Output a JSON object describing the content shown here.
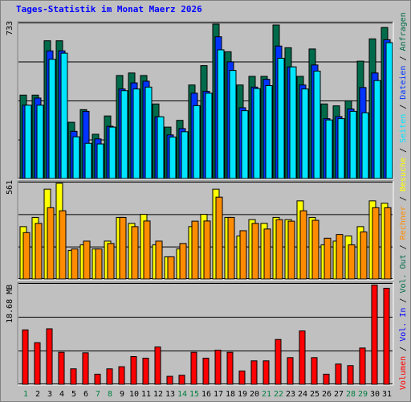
{
  "title": "Tages-Statistik im Monat Maerz 2026",
  "colors": {
    "background": "#c0c0c0",
    "hits": "#006b4a",
    "files": "#0033ff",
    "pages": "#00e5ff",
    "visits": "#ffff00",
    "sites": "#ff8c00",
    "volume": "#ff0000",
    "weekend_label": "#008040",
    "title": "#0000ff"
  },
  "legend": {
    "top_sep1": " / ",
    "top_sep2": " / ",
    "top_sep3": " / ",
    "mid_sep1": " / ",
    "mid_sep2": " / ",
    "bot_sep1": " / ",
    "bot_sep2": " / ",
    "bot_sep3": " / "
  },
  "chart_data": [
    {
      "type": "bar",
      "panel": "top",
      "max_label": "733",
      "ylim": [
        0,
        733
      ],
      "grid": true,
      "categories": [
        "1",
        "2",
        "3",
        "4",
        "5",
        "6",
        "7",
        "8",
        "9",
        "10",
        "11",
        "12",
        "13",
        "14",
        "15",
        "16",
        "17",
        "18",
        "19",
        "20",
        "21",
        "22",
        "23",
        "24",
        "25",
        "26",
        "27",
        "28",
        "29",
        "30",
        "31"
      ],
      "weekend_days": [
        "1",
        "7",
        "8",
        "14",
        "15",
        "21",
        "22",
        "28",
        "29"
      ],
      "series": [
        {
          "name": "Anfragen",
          "color": "#006b4a",
          "values": [
            396,
            396,
            654,
            654,
            267,
            327,
            210,
            297,
            489,
            501,
            489,
            354,
            244,
            276,
            444,
            536,
            733,
            602,
            444,
            485,
            485,
            729,
            621,
            485,
            615,
            354,
            345,
            369,
            557,
            663,
            717
          ]
        },
        {
          "name": "Dateien",
          "color": "#0033ff",
          "values": [
            348,
            382,
            606,
            606,
            224,
            319,
            188,
            248,
            425,
            454,
            462,
            293,
            207,
            237,
            405,
            414,
            673,
            554,
            336,
            434,
            471,
            629,
            530,
            444,
            539,
            284,
            294,
            330,
            432,
            501,
            659
          ]
        },
        {
          "name": "Seiten",
          "color": "#00e5ff",
          "values": [
            348,
            348,
            566,
            595,
            198,
            167,
            164,
            244,
            417,
            425,
            434,
            293,
            197,
            222,
            346,
            405,
            611,
            513,
            322,
            427,
            441,
            571,
            530,
            425,
            510,
            278,
            284,
            319,
            312,
            465,
            645
          ]
        }
      ]
    },
    {
      "type": "bar",
      "panel": "middle",
      "max_label": "561",
      "ylim": [
        0,
        561
      ],
      "grid": true,
      "categories": [
        "1",
        "2",
        "3",
        "4",
        "5",
        "6",
        "7",
        "8",
        "9",
        "10",
        "11",
        "12",
        "13",
        "14",
        "15",
        "16",
        "17",
        "18",
        "19",
        "20",
        "21",
        "22",
        "23",
        "24",
        "25",
        "26",
        "27",
        "28",
        "29",
        "30",
        "31"
      ],
      "series": [
        {
          "name": "Besuche",
          "color": "#ffff00",
          "values": [
            307,
            361,
            527,
            561,
            167,
            200,
            176,
            222,
            361,
            326,
            379,
            200,
            130,
            176,
            307,
            379,
            527,
            361,
            252,
            348,
            326,
            361,
            348,
            458,
            361,
            200,
            222,
            252,
            307,
            458,
            444
          ]
        },
        {
          "name": "Rechner",
          "color": "#ff8c00",
          "values": [
            272,
            326,
            418,
            400,
            176,
            222,
            176,
            208,
            361,
            307,
            340,
            222,
            130,
            208,
            339,
            340,
            480,
            361,
            283,
            326,
            293,
            348,
            339,
            400,
            344,
            239,
            261,
            200,
            276,
            418,
            418
          ]
        }
      ]
    },
    {
      "type": "bar",
      "panel": "bottom",
      "max_label": "18.68 MB",
      "ylim": [
        0,
        18.68
      ],
      "grid": true,
      "categories": [
        "1",
        "2",
        "3",
        "4",
        "5",
        "6",
        "7",
        "8",
        "9",
        "10",
        "11",
        "12",
        "13",
        "14",
        "15",
        "16",
        "17",
        "18",
        "19",
        "20",
        "21",
        "22",
        "23",
        "24",
        "25",
        "26",
        "27",
        "28",
        "29",
        "30",
        "31"
      ],
      "series": [
        {
          "name": "Volumen",
          "color": "#ff0000",
          "values": [
            10.2,
            7.8,
            10.4,
            6.0,
            2.9,
            5.9,
            1.9,
            2.9,
            3.3,
            5.2,
            4.9,
            7.0,
            1.5,
            1.7,
            6.0,
            4.9,
            6.4,
            6.0,
            2.5,
            4.4,
            4.4,
            8.4,
            5.0,
            10.0,
            5.0,
            1.9,
            3.8,
            3.5,
            6.8,
            18.6,
            18.0
          ]
        }
      ]
    }
  ]
}
